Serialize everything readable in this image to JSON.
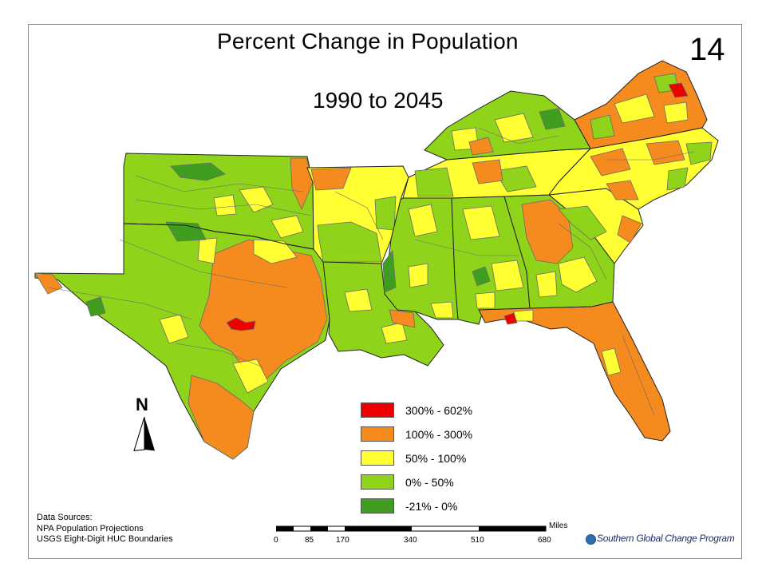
{
  "title": "Percent Change in Population",
  "subtitle": "1990 to 2045",
  "slide_number": "14",
  "colors": {
    "class_300_602": "#ee0000",
    "class_100_300": "#f58a1f",
    "class_50_100": "#ffff33",
    "class_0_50": "#8fd41a",
    "class_neg21_0": "#3f9e20",
    "boundary": "#6a6a6a",
    "state_line": "#222222"
  },
  "legend": [
    {
      "label": "300% - 602%",
      "color": "#ee0000"
    },
    {
      "label": "100% - 300%",
      "color": "#f58a1f"
    },
    {
      "label": "50% - 100%",
      "color": "#ffff33"
    },
    {
      "label": "0% - 50%",
      "color": "#8fd41a"
    },
    {
      "label": "-21% - 0%",
      "color": "#3f9e20"
    }
  ],
  "north_arrow": {
    "label": "N"
  },
  "data_sources": {
    "heading": "Data Sources:",
    "line1": "NPA Population Projections",
    "line2": "USGS Eight-Digit HUC Boundaries"
  },
  "scale_bar": {
    "units": "Miles",
    "ticks": [
      "0",
      "85",
      "170",
      "340",
      "510",
      "680"
    ]
  },
  "credit": "Southern Global Change Program"
}
